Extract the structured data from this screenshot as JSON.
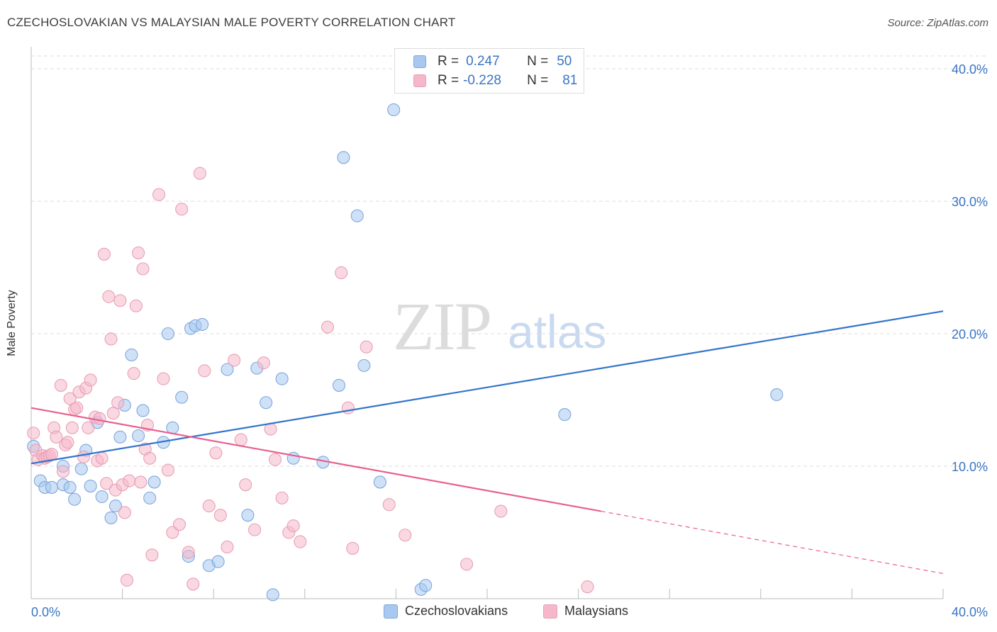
{
  "title": "CZECHOSLOVAKIAN VS MALAYSIAN MALE POVERTY CORRELATION CHART",
  "source": "Source: ZipAtlas.com",
  "watermark": {
    "zip": "ZIP",
    "atlas": "atlas"
  },
  "legend": {
    "rows": [
      {
        "r_label": "R =",
        "r_value": "0.247",
        "n_label": "N =",
        "n_value": "50",
        "color": "#a8c8f0"
      },
      {
        "r_label": "R =",
        "r_value": "-0.228",
        "n_label": "N =",
        "n_value": "81",
        "color": "#f5b8cb"
      }
    ]
  },
  "bottom_legend": [
    {
      "label": "Czechoslovakians",
      "color": "#a8c8f0"
    },
    {
      "label": "Malaysians",
      "color": "#f5b8cb"
    }
  ],
  "colors": {
    "blue_fill": "#a8c8f0",
    "blue_stroke": "#7fa8dc",
    "blue_line": "#3374cc",
    "pink_fill": "#f5b8cb",
    "pink_stroke": "#e8a0b6",
    "pink_line": "#e8608e",
    "grid": "#dedede",
    "axis_text": "#3a75c4"
  },
  "chart_data": {
    "type": "scatter",
    "title": "CZECHOSLOVAKIAN VS MALAYSIAN MALE POVERTY CORRELATION CHART",
    "xlabel": "",
    "ylabel": "Male Poverty",
    "xlim": [
      0,
      40
    ],
    "ylim": [
      0,
      40
    ],
    "x_tick_labels": [
      "0.0%",
      "40.0%"
    ],
    "y_ticks": [
      10,
      20,
      30,
      40
    ],
    "y_tick_labels": [
      "10.0%",
      "20.0%",
      "30.0%",
      "40.0%"
    ],
    "grid": true,
    "legend_position": "top-center",
    "series": [
      {
        "name": "Czechoslovakians",
        "r": 0.247,
        "n": 50,
        "trend": {
          "x": [
            0,
            40
          ],
          "y": [
            10.2,
            21.7
          ]
        },
        "points": [
          [
            0.1,
            11.5
          ],
          [
            0.4,
            8.9
          ],
          [
            0.6,
            8.4
          ],
          [
            0.9,
            8.4
          ],
          [
            1.4,
            8.6
          ],
          [
            1.4,
            10.0
          ],
          [
            1.7,
            8.4
          ],
          [
            1.9,
            7.5
          ],
          [
            2.2,
            9.8
          ],
          [
            2.4,
            11.2
          ],
          [
            2.6,
            8.5
          ],
          [
            2.9,
            13.3
          ],
          [
            3.1,
            7.7
          ],
          [
            3.5,
            6.1
          ],
          [
            3.7,
            7.0
          ],
          [
            3.9,
            12.2
          ],
          [
            4.1,
            14.6
          ],
          [
            4.4,
            18.4
          ],
          [
            4.7,
            12.3
          ],
          [
            4.9,
            14.2
          ],
          [
            5.2,
            7.6
          ],
          [
            5.4,
            8.8
          ],
          [
            5.8,
            11.8
          ],
          [
            6.0,
            20.0
          ],
          [
            6.2,
            12.9
          ],
          [
            6.6,
            15.2
          ],
          [
            6.9,
            3.2
          ],
          [
            7.0,
            20.4
          ],
          [
            7.2,
            20.6
          ],
          [
            7.5,
            20.7
          ],
          [
            7.8,
            2.5
          ],
          [
            8.2,
            2.8
          ],
          [
            8.6,
            17.3
          ],
          [
            9.5,
            6.3
          ],
          [
            9.9,
            17.4
          ],
          [
            10.3,
            14.8
          ],
          [
            10.6,
            0.3
          ],
          [
            11.0,
            16.6
          ],
          [
            11.5,
            10.6
          ],
          [
            12.8,
            10.3
          ],
          [
            13.5,
            16.1
          ],
          [
            13.7,
            33.3
          ],
          [
            14.3,
            28.9
          ],
          [
            14.6,
            17.6
          ],
          [
            15.3,
            8.8
          ],
          [
            15.9,
            36.9
          ],
          [
            17.1,
            0.7
          ],
          [
            17.3,
            1.0
          ],
          [
            23.4,
            13.9
          ],
          [
            32.7,
            15.4
          ]
        ]
      },
      {
        "name": "Malaysians",
        "r": -0.228,
        "n": 81,
        "trend": {
          "x": [
            0,
            25
          ],
          "y": [
            14.4,
            6.6
          ]
        },
        "trend_dashed": {
          "x": [
            25,
            40
          ],
          "y": [
            6.6,
            1.9
          ]
        },
        "points": [
          [
            0.1,
            12.5
          ],
          [
            0.2,
            11.2
          ],
          [
            0.3,
            10.5
          ],
          [
            0.5,
            10.8
          ],
          [
            0.6,
            10.6
          ],
          [
            0.7,
            10.7
          ],
          [
            0.8,
            10.8
          ],
          [
            0.9,
            10.9
          ],
          [
            1.0,
            12.9
          ],
          [
            1.1,
            12.2
          ],
          [
            1.3,
            16.1
          ],
          [
            1.4,
            9.6
          ],
          [
            1.5,
            11.6
          ],
          [
            1.6,
            11.8
          ],
          [
            1.7,
            15.1
          ],
          [
            1.8,
            12.9
          ],
          [
            1.9,
            14.3
          ],
          [
            2.0,
            14.4
          ],
          [
            2.1,
            15.6
          ],
          [
            2.3,
            10.7
          ],
          [
            2.4,
            15.9
          ],
          [
            2.5,
            12.9
          ],
          [
            2.6,
            16.5
          ],
          [
            2.8,
            13.7
          ],
          [
            2.9,
            10.4
          ],
          [
            3.0,
            13.6
          ],
          [
            3.1,
            10.6
          ],
          [
            3.2,
            26.0
          ],
          [
            3.3,
            8.7
          ],
          [
            3.4,
            22.8
          ],
          [
            3.5,
            19.6
          ],
          [
            3.6,
            14.0
          ],
          [
            3.7,
            8.2
          ],
          [
            3.8,
            14.8
          ],
          [
            3.9,
            22.5
          ],
          [
            4.0,
            8.6
          ],
          [
            4.1,
            6.5
          ],
          [
            4.2,
            1.4
          ],
          [
            4.3,
            8.9
          ],
          [
            4.5,
            17.0
          ],
          [
            4.6,
            22.1
          ],
          [
            4.7,
            26.1
          ],
          [
            4.8,
            8.8
          ],
          [
            4.9,
            24.9
          ],
          [
            5.0,
            11.3
          ],
          [
            5.1,
            13.1
          ],
          [
            5.2,
            10.6
          ],
          [
            5.3,
            3.3
          ],
          [
            5.6,
            30.5
          ],
          [
            5.8,
            16.6
          ],
          [
            6.0,
            9.7
          ],
          [
            6.2,
            5.0
          ],
          [
            6.5,
            5.6
          ],
          [
            6.6,
            29.4
          ],
          [
            6.9,
            3.5
          ],
          [
            7.1,
            1.1
          ],
          [
            7.4,
            32.1
          ],
          [
            7.6,
            17.2
          ],
          [
            7.8,
            7.0
          ],
          [
            8.1,
            11.0
          ],
          [
            8.3,
            6.3
          ],
          [
            8.6,
            3.9
          ],
          [
            8.9,
            18.0
          ],
          [
            9.2,
            12.0
          ],
          [
            9.4,
            8.6
          ],
          [
            9.8,
            5.2
          ],
          [
            10.2,
            17.8
          ],
          [
            10.5,
            12.8
          ],
          [
            10.7,
            10.5
          ],
          [
            11.0,
            7.6
          ],
          [
            11.3,
            5.0
          ],
          [
            11.5,
            5.5
          ],
          [
            11.8,
            4.3
          ],
          [
            13.0,
            20.5
          ],
          [
            13.6,
            24.6
          ],
          [
            13.9,
            14.4
          ],
          [
            14.1,
            3.8
          ],
          [
            14.7,
            19.0
          ],
          [
            15.7,
            7.1
          ],
          [
            16.4,
            4.8
          ],
          [
            19.1,
            2.6
          ],
          [
            20.6,
            6.6
          ],
          [
            24.4,
            0.9
          ]
        ]
      }
    ]
  }
}
